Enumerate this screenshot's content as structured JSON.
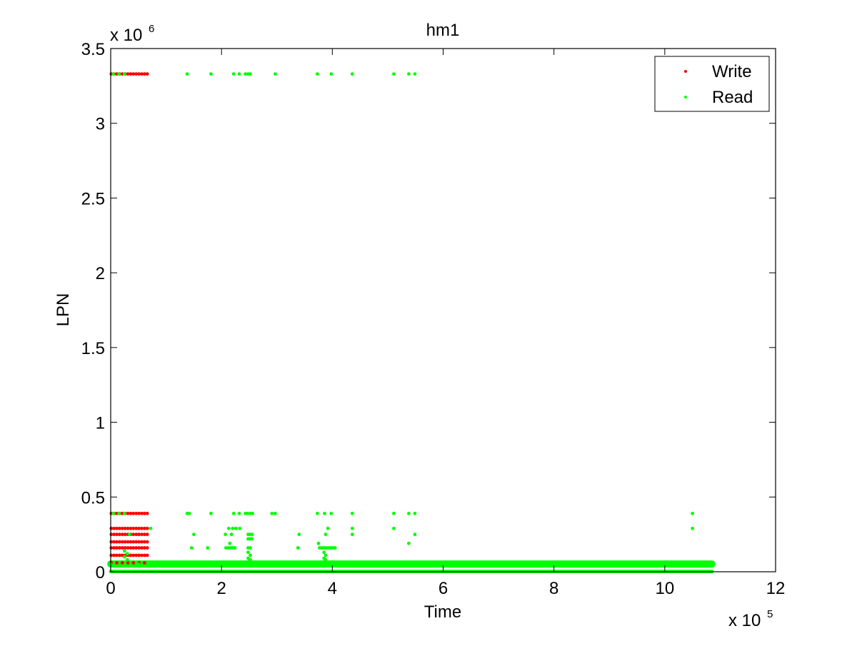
{
  "chart_data": {
    "type": "scatter",
    "title": "hm1",
    "xlabel": "Time",
    "ylabel": "LPN",
    "x_exponent_label": "x 10",
    "x_exponent_power": "5",
    "y_exponent_label": "x 10",
    "y_exponent_power": "6",
    "xlim": [
      0,
      1200000
    ],
    "ylim": [
      0,
      3500000
    ],
    "x_ticks": [
      "0",
      "2",
      "4",
      "6",
      "8",
      "10",
      "12"
    ],
    "y_ticks": [
      "0",
      "0.5",
      "1",
      "1.5",
      "2",
      "2.5",
      "3",
      "3.5"
    ],
    "grid": false,
    "legend_position": "top-right",
    "series": [
      {
        "name": "Write",
        "color": "#ff0000",
        "points": [
          [
            1000,
            3330000
          ],
          [
            6000,
            3330000
          ],
          [
            11000,
            3330000
          ],
          [
            16000,
            3330000
          ],
          [
            21000,
            3330000
          ],
          [
            26000,
            3330000
          ],
          [
            31000,
            3330000
          ],
          [
            36000,
            3330000
          ],
          [
            41000,
            3330000
          ],
          [
            46000,
            3330000
          ],
          [
            51000,
            3330000
          ],
          [
            56000,
            3330000
          ],
          [
            61000,
            3330000
          ],
          [
            66000,
            3330000
          ],
          [
            1000,
            390000
          ],
          [
            6000,
            390000
          ],
          [
            11000,
            390000
          ],
          [
            16000,
            390000
          ],
          [
            21000,
            390000
          ],
          [
            26000,
            390000
          ],
          [
            31000,
            390000
          ],
          [
            36000,
            390000
          ],
          [
            41000,
            390000
          ],
          [
            46000,
            390000
          ],
          [
            51000,
            390000
          ],
          [
            56000,
            390000
          ],
          [
            61000,
            390000
          ],
          [
            66000,
            390000
          ],
          [
            1000,
            290000
          ],
          [
            6000,
            290000
          ],
          [
            11000,
            290000
          ],
          [
            16000,
            290000
          ],
          [
            21000,
            290000
          ],
          [
            26000,
            290000
          ],
          [
            31000,
            290000
          ],
          [
            36000,
            290000
          ],
          [
            41000,
            290000
          ],
          [
            46000,
            290000
          ],
          [
            51000,
            290000
          ],
          [
            56000,
            290000
          ],
          [
            61000,
            290000
          ],
          [
            66000,
            290000
          ],
          [
            1000,
            250000
          ],
          [
            6000,
            250000
          ],
          [
            11000,
            250000
          ],
          [
            16000,
            250000
          ],
          [
            21000,
            250000
          ],
          [
            26000,
            250000
          ],
          [
            31000,
            250000
          ],
          [
            36000,
            250000
          ],
          [
            41000,
            250000
          ],
          [
            46000,
            250000
          ],
          [
            51000,
            250000
          ],
          [
            56000,
            250000
          ],
          [
            61000,
            250000
          ],
          [
            66000,
            250000
          ],
          [
            1000,
            200000
          ],
          [
            6000,
            200000
          ],
          [
            11000,
            200000
          ],
          [
            16000,
            200000
          ],
          [
            21000,
            200000
          ],
          [
            26000,
            200000
          ],
          [
            31000,
            200000
          ],
          [
            36000,
            200000
          ],
          [
            41000,
            200000
          ],
          [
            46000,
            200000
          ],
          [
            51000,
            200000
          ],
          [
            56000,
            200000
          ],
          [
            61000,
            200000
          ],
          [
            66000,
            200000
          ],
          [
            1000,
            160000
          ],
          [
            6000,
            160000
          ],
          [
            11000,
            160000
          ],
          [
            16000,
            160000
          ],
          [
            21000,
            160000
          ],
          [
            26000,
            160000
          ],
          [
            31000,
            160000
          ],
          [
            36000,
            160000
          ],
          [
            41000,
            160000
          ],
          [
            46000,
            160000
          ],
          [
            51000,
            160000
          ],
          [
            56000,
            160000
          ],
          [
            61000,
            160000
          ],
          [
            66000,
            160000
          ],
          [
            1000,
            110000
          ],
          [
            6000,
            110000
          ],
          [
            11000,
            110000
          ],
          [
            16000,
            110000
          ],
          [
            21000,
            110000
          ],
          [
            26000,
            110000
          ],
          [
            31000,
            110000
          ],
          [
            36000,
            110000
          ],
          [
            41000,
            110000
          ],
          [
            46000,
            110000
          ],
          [
            51000,
            110000
          ],
          [
            56000,
            110000
          ],
          [
            61000,
            110000
          ],
          [
            66000,
            110000
          ],
          [
            1000,
            60000
          ],
          [
            11000,
            60000
          ],
          [
            21000,
            60000
          ],
          [
            31000,
            60000
          ],
          [
            41000,
            60000
          ],
          [
            51000,
            60000
          ],
          [
            61000,
            60000
          ]
        ]
      },
      {
        "name": "Read",
        "color": "#00ff00",
        "points": [
          [
            5000,
            3330000
          ],
          [
            15000,
            3330000
          ],
          [
            25000,
            3330000
          ],
          [
            138000,
            3330000
          ],
          [
            181000,
            3330000
          ],
          [
            222000,
            3330000
          ],
          [
            232000,
            3330000
          ],
          [
            243000,
            3330000
          ],
          [
            248000,
            3330000
          ],
          [
            252000,
            3330000
          ],
          [
            297000,
            3330000
          ],
          [
            373000,
            3330000
          ],
          [
            398000,
            3330000
          ],
          [
            436000,
            3330000
          ],
          [
            511000,
            3330000
          ],
          [
            538000,
            3330000
          ],
          [
            549000,
            3330000
          ],
          [
            5000,
            390000
          ],
          [
            15000,
            390000
          ],
          [
            25000,
            390000
          ],
          [
            138000,
            390000
          ],
          [
            142000,
            390000
          ],
          [
            181000,
            390000
          ],
          [
            222000,
            390000
          ],
          [
            232000,
            390000
          ],
          [
            243000,
            390000
          ],
          [
            247000,
            390000
          ],
          [
            252000,
            390000
          ],
          [
            256000,
            390000
          ],
          [
            291000,
            390000
          ],
          [
            297000,
            390000
          ],
          [
            373000,
            390000
          ],
          [
            386000,
            390000
          ],
          [
            398000,
            390000
          ],
          [
            436000,
            390000
          ],
          [
            511000,
            390000
          ],
          [
            538000,
            390000
          ],
          [
            549000,
            390000
          ],
          [
            1050000,
            390000
          ],
          [
            72000,
            290000
          ],
          [
            213000,
            290000
          ],
          [
            220000,
            290000
          ],
          [
            226000,
            290000
          ],
          [
            233000,
            290000
          ],
          [
            392000,
            290000
          ],
          [
            436000,
            290000
          ],
          [
            511000,
            290000
          ],
          [
            1050000,
            290000
          ],
          [
            34000,
            250000
          ],
          [
            150000,
            250000
          ],
          [
            207000,
            250000
          ],
          [
            218000,
            250000
          ],
          [
            248000,
            250000
          ],
          [
            251000,
            250000
          ],
          [
            255000,
            250000
          ],
          [
            340000,
            250000
          ],
          [
            388000,
            250000
          ],
          [
            436000,
            250000
          ],
          [
            549000,
            250000
          ],
          [
            248000,
            220000
          ],
          [
            252000,
            220000
          ],
          [
            255000,
            220000
          ],
          [
            215000,
            190000
          ],
          [
            375000,
            190000
          ],
          [
            538000,
            190000
          ],
          [
            146000,
            160000
          ],
          [
            175000,
            160000
          ],
          [
            208000,
            160000
          ],
          [
            212000,
            160000
          ],
          [
            216000,
            160000
          ],
          [
            220000,
            160000
          ],
          [
            224000,
            160000
          ],
          [
            248000,
            160000
          ],
          [
            252000,
            160000
          ],
          [
            338000,
            160000
          ],
          [
            377000,
            160000
          ],
          [
            381000,
            160000
          ],
          [
            385000,
            160000
          ],
          [
            389000,
            160000
          ],
          [
            393000,
            160000
          ],
          [
            397000,
            160000
          ],
          [
            401000,
            160000
          ],
          [
            405000,
            160000
          ],
          [
            25000,
            140000
          ],
          [
            30000,
            120000
          ],
          [
            248000,
            130000
          ],
          [
            252000,
            110000
          ],
          [
            385000,
            130000
          ],
          [
            388000,
            110000
          ],
          [
            25000,
            100000
          ],
          [
            30000,
            80000
          ],
          [
            248000,
            90000
          ],
          [
            252000,
            80000
          ],
          [
            385000,
            90000
          ],
          [
            388000,
            80000
          ],
          [
            250000,
            70000
          ],
          [
            387000,
            70000
          ],
          [
            0,
            52000
          ],
          [
            50000,
            52000
          ],
          [
            100000,
            52000
          ],
          [
            150000,
            52000
          ],
          [
            200000,
            52000
          ],
          [
            250000,
            52000
          ],
          [
            300000,
            52000
          ],
          [
            350000,
            52000
          ],
          [
            400000,
            52000
          ],
          [
            450000,
            52000
          ],
          [
            500000,
            52000
          ],
          [
            550000,
            52000
          ],
          [
            600000,
            52000
          ],
          [
            650000,
            52000
          ],
          [
            700000,
            52000
          ],
          [
            750000,
            52000
          ],
          [
            800000,
            52000
          ],
          [
            850000,
            52000
          ],
          [
            900000,
            52000
          ],
          [
            950000,
            52000
          ],
          [
            1000000,
            52000
          ],
          [
            1050000,
            52000
          ],
          [
            1085000,
            52000
          ],
          [
            0,
            2000
          ],
          [
            50000,
            2000
          ],
          [
            100000,
            2000
          ],
          [
            150000,
            2000
          ],
          [
            200000,
            2000
          ],
          [
            250000,
            2000
          ],
          [
            300000,
            2000
          ],
          [
            350000,
            2000
          ],
          [
            400000,
            2000
          ],
          [
            450000,
            2000
          ],
          [
            500000,
            2000
          ],
          [
            550000,
            2000
          ],
          [
            600000,
            2000
          ],
          [
            650000,
            2000
          ],
          [
            700000,
            2000
          ],
          [
            750000,
            2000
          ],
          [
            800000,
            2000
          ],
          [
            850000,
            2000
          ],
          [
            900000,
            2000
          ],
          [
            950000,
            2000
          ],
          [
            1000000,
            2000
          ],
          [
            1050000,
            2000
          ],
          [
            1085000,
            2000
          ]
        ]
      }
    ]
  }
}
